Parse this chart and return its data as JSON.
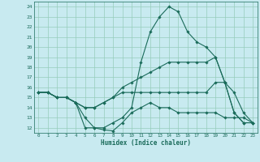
{
  "xlabel": "Humidex (Indice chaleur)",
  "xlim": [
    -0.5,
    23.5
  ],
  "ylim": [
    11.5,
    24.5
  ],
  "yticks": [
    12,
    13,
    14,
    15,
    16,
    17,
    18,
    19,
    20,
    21,
    22,
    23,
    24
  ],
  "xticks": [
    0,
    1,
    2,
    3,
    4,
    5,
    6,
    7,
    8,
    9,
    10,
    11,
    12,
    13,
    14,
    15,
    16,
    17,
    18,
    19,
    20,
    21,
    22,
    23
  ],
  "bg_color": "#c8eaf0",
  "grid_color": "#96ccbb",
  "line_color": "#1a6b5a",
  "lines": [
    {
      "x": [
        0,
        1,
        2,
        3,
        4,
        5,
        6,
        7,
        8,
        9,
        10,
        11,
        12,
        13,
        14,
        15,
        16,
        17,
        18,
        19,
        20,
        21,
        22,
        23
      ],
      "y": [
        15.5,
        15.5,
        15.0,
        15.0,
        14.5,
        12.0,
        12.0,
        12.0,
        12.5,
        13.0,
        14.0,
        18.5,
        21.5,
        23.0,
        24.0,
        23.5,
        21.5,
        20.5,
        20.0,
        19.0,
        16.5,
        13.5,
        12.5,
        12.5
      ]
    },
    {
      "x": [
        0,
        1,
        2,
        3,
        4,
        5,
        6,
        7,
        8,
        9,
        10,
        11,
        12,
        13,
        14,
        15,
        16,
        17,
        18,
        19,
        20,
        21,
        22,
        23
      ],
      "y": [
        15.5,
        15.5,
        15.0,
        15.0,
        14.5,
        14.0,
        14.0,
        14.5,
        15.0,
        16.0,
        16.5,
        17.0,
        17.5,
        18.0,
        18.5,
        18.5,
        18.5,
        18.5,
        18.5,
        19.0,
        16.5,
        13.5,
        12.5,
        12.5
      ]
    },
    {
      "x": [
        0,
        1,
        2,
        3,
        4,
        5,
        6,
        7,
        8,
        9,
        10,
        11,
        12,
        13,
        14,
        15,
        16,
        17,
        18,
        19,
        20,
        21,
        22,
        23
      ],
      "y": [
        15.5,
        15.5,
        15.0,
        15.0,
        14.5,
        14.0,
        14.0,
        14.5,
        15.0,
        15.5,
        15.5,
        15.5,
        15.5,
        15.5,
        15.5,
        15.5,
        15.5,
        15.5,
        15.5,
        16.5,
        16.5,
        15.5,
        13.5,
        12.5
      ]
    },
    {
      "x": [
        0,
        1,
        2,
        3,
        4,
        5,
        6,
        7,
        8,
        9,
        10,
        11,
        12,
        13,
        14,
        15,
        16,
        17,
        18,
        19,
        20,
        21,
        22,
        23
      ],
      "y": [
        15.5,
        15.5,
        15.0,
        15.0,
        14.5,
        13.0,
        12.0,
        11.8,
        11.7,
        12.5,
        13.5,
        14.0,
        14.5,
        14.0,
        14.0,
        13.5,
        13.5,
        13.5,
        13.5,
        13.5,
        13.0,
        13.0,
        13.0,
        12.5
      ]
    }
  ]
}
